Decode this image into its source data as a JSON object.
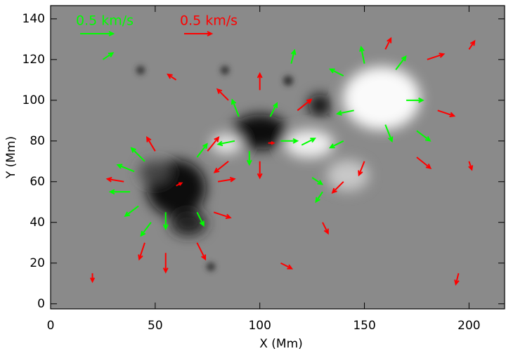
{
  "chart_data": {
    "type": "quiver",
    "xlabel": "X (Mm)",
    "ylabel": "Y (Mm)",
    "xlim": [
      0,
      217
    ],
    "ylim": [
      -2.5,
      146.5
    ],
    "xticks": [
      0,
      50,
      100,
      150,
      200
    ],
    "yticks": [
      0,
      20,
      40,
      60,
      80,
      100,
      120,
      140
    ],
    "key_value": 0.5,
    "series": [
      {
        "name": "0.5 km/s",
        "color": "#00ff00",
        "x": [
          40,
          45,
          38,
          42,
          70,
          55,
          48,
          70,
          90,
          105,
          95,
          110,
          88,
          140,
          150,
          165,
          145,
          160,
          170,
          175,
          140,
          120,
          125,
          130,
          115,
          25
        ],
        "y": [
          65,
          70,
          55,
          48,
          72,
          45,
          40,
          45,
          92,
          92,
          75,
          80,
          80,
          112,
          118,
          115,
          95,
          88,
          100,
          85,
          80,
          78,
          62,
          55,
          118,
          120
        ],
        "u": [
          -0.25,
          -0.2,
          -0.3,
          -0.2,
          0.15,
          0,
          -0.15,
          0.1,
          -0.1,
          0.1,
          0,
          0.25,
          -0.25,
          -0.2,
          -0.05,
          0.15,
          -0.25,
          0.1,
          0.25,
          0.2,
          -0.2,
          0.2,
          0.15,
          -0.1,
          0.05,
          0.15
        ],
        "v": [
          0.1,
          0.2,
          0,
          -0.15,
          0.2,
          -0.25,
          -0.2,
          -0.2,
          0.25,
          0.2,
          -0.2,
          0,
          -0.05,
          0.1,
          0.25,
          0.2,
          -0.05,
          -0.25,
          0,
          -0.15,
          -0.1,
          0.1,
          -0.1,
          -0.15,
          0.2,
          0.1
        ]
      },
      {
        "name": "0.5 km/s",
        "color": "#ff0000",
        "x": [
          35,
          45,
          55,
          70,
          78,
          80,
          75,
          50,
          60,
          85,
          100,
          118,
          100,
          85,
          104,
          150,
          140,
          160,
          180,
          185,
          175,
          130,
          60,
          200,
          200,
          195,
          110,
          20
        ],
        "y": [
          60,
          30,
          25,
          30,
          45,
          60,
          75,
          75,
          58,
          100,
          105,
          95,
          70,
          70,
          79,
          70,
          60,
          125,
          120,
          95,
          72,
          40,
          110,
          125,
          70,
          15,
          20,
          15
        ],
        "u": [
          -0.3,
          -0.1,
          0,
          0.15,
          0.3,
          0.3,
          0.2,
          -0.15,
          0.1,
          -0.2,
          0,
          0.25,
          0,
          -0.25,
          0.1,
          -0.1,
          -0.2,
          0.1,
          0.3,
          0.3,
          0.25,
          0.1,
          -0.15,
          0.1,
          0.05,
          -0.05,
          0.2,
          0
        ],
        "v": [
          0.05,
          -0.3,
          -0.35,
          -0.3,
          -0.1,
          0.05,
          0.25,
          0.25,
          0.05,
          0.2,
          0.3,
          0.2,
          -0.3,
          -0.2,
          0,
          -0.25,
          -0.2,
          0.2,
          0.1,
          -0.1,
          -0.2,
          -0.2,
          0.1,
          0.15,
          -0.15,
          -0.2,
          -0.1,
          -0.15
        ]
      }
    ]
  }
}
